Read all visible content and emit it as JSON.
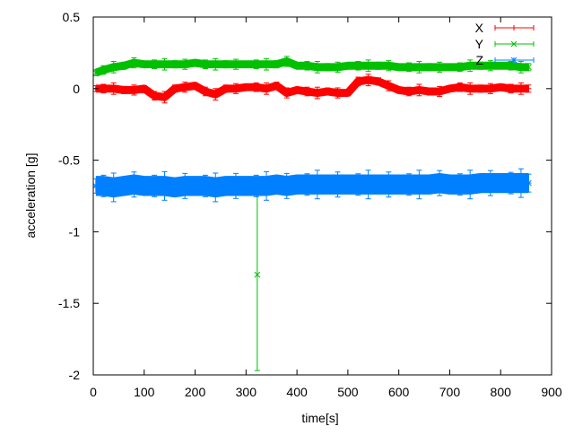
{
  "chart_data": {
    "type": "scatter",
    "title": "",
    "xlabel": "time[s]",
    "ylabel": "acceleration [g]",
    "xlim": [
      0,
      900
    ],
    "ylim": [
      -2,
      0.5
    ],
    "xticks": [
      "0",
      "100",
      "200",
      "300",
      "400",
      "500",
      "600",
      "700",
      "800",
      "900"
    ],
    "yticks": [
      "0.5",
      "0",
      "-0.5",
      "-1",
      "-1.5",
      "-2"
    ],
    "grid": false,
    "legend_position": "top-right",
    "x": [
      5,
      20,
      40,
      60,
      80,
      100,
      120,
      140,
      160,
      180,
      200,
      220,
      240,
      260,
      280,
      300,
      320,
      340,
      360,
      380,
      400,
      420,
      440,
      460,
      480,
      500,
      520,
      540,
      560,
      580,
      600,
      620,
      640,
      660,
      680,
      700,
      720,
      740,
      760,
      780,
      800,
      820,
      840,
      855
    ],
    "series": [
      {
        "name": "X",
        "color": "#ff0000",
        "marker": "plus",
        "err": 0.02,
        "values": [
          0,
          0,
          0,
          -0.01,
          -0.01,
          0,
          -0.05,
          -0.06,
          0,
          0.01,
          0.02,
          -0.02,
          -0.04,
          0,
          0,
          0.01,
          0.01,
          0,
          0.02,
          -0.03,
          -0.01,
          -0.02,
          -0.03,
          -0.02,
          -0.03,
          -0.03,
          0.05,
          0.06,
          0.05,
          0.02,
          -0.01,
          -0.02,
          -0.01,
          -0.02,
          -0.02,
          0,
          0.01,
          0,
          0,
          0,
          0.01,
          0,
          0,
          0
        ]
      },
      {
        "name": "Y",
        "color": "#00c000",
        "marker": "cross",
        "err": 0.02,
        "values": [
          0.11,
          0.13,
          0.15,
          0.16,
          0.18,
          0.17,
          0.17,
          0.17,
          0.17,
          0.17,
          0.18,
          0.17,
          0.17,
          0.17,
          0.17,
          0.17,
          0.17,
          0.17,
          0.17,
          0.19,
          0.16,
          0.16,
          0.15,
          0.15,
          0.15,
          0.16,
          0.16,
          0.16,
          0.16,
          0.16,
          0.15,
          0.15,
          0.15,
          0.15,
          0.15,
          0.15,
          0.15,
          0.16,
          0.16,
          0.16,
          0.16,
          0.16,
          0.15,
          0.15
        ],
        "outliers": [
          {
            "x": 322,
            "y": -1.3,
            "err": 0.67
          }
        ]
      },
      {
        "name": "Z",
        "color": "#0080ff",
        "marker": "star",
        "err": 0.05,
        "values": [
          -0.68,
          -0.68,
          -0.69,
          -0.68,
          -0.67,
          -0.68,
          -0.68,
          -0.68,
          -0.69,
          -0.68,
          -0.68,
          -0.68,
          -0.69,
          -0.68,
          -0.68,
          -0.68,
          -0.68,
          -0.68,
          -0.67,
          -0.68,
          -0.67,
          -0.67,
          -0.67,
          -0.67,
          -0.67,
          -0.67,
          -0.67,
          -0.67,
          -0.67,
          -0.67,
          -0.67,
          -0.67,
          -0.67,
          -0.67,
          -0.66,
          -0.67,
          -0.67,
          -0.67,
          -0.66,
          -0.66,
          -0.66,
          -0.66,
          -0.66,
          -0.66
        ]
      }
    ]
  }
}
